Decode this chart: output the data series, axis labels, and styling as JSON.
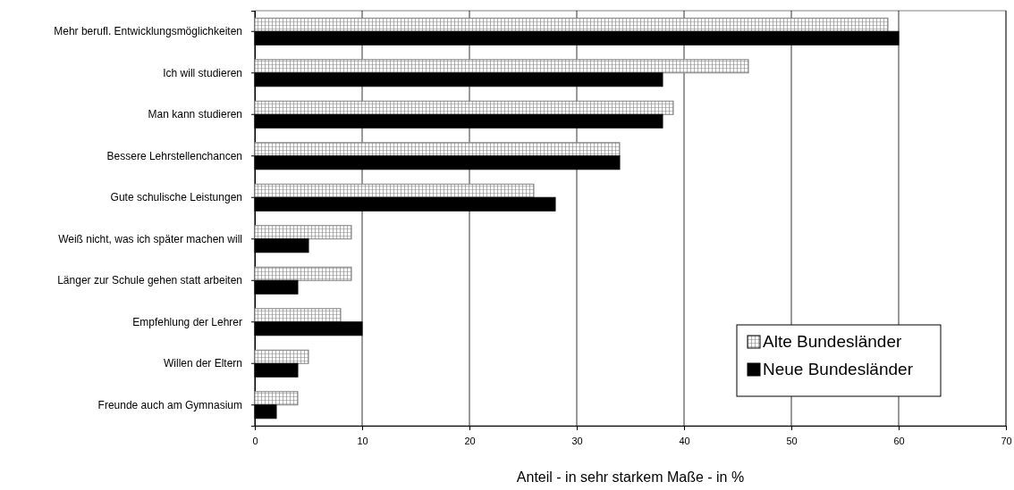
{
  "chart_data": {
    "type": "bar",
    "orientation": "horizontal",
    "xlabel": "Anteil - in sehr starkem Maße  - in %",
    "categories": [
      "Mehr berufl. Entwicklungsmöglichkeiten",
      "Ich will studieren",
      "Man kann studieren",
      "Bessere Lehrstellenchancen",
      "Gute schulische Leistungen",
      "Weiß nicht, was ich später machen will",
      "Länger zur Schule gehen statt arbeiten",
      "Empfehlung der Lehrer",
      "Willen der Eltern",
      "Freunde auch am Gymnasium"
    ],
    "series": [
      {
        "name": "Alte Bundesländer",
        "color": "#808080",
        "values": [
          59,
          46,
          39,
          34,
          26,
          9,
          9,
          8,
          5,
          4
        ]
      },
      {
        "name": "Neue Bundesländer",
        "color": "#000000",
        "values": [
          60,
          38,
          38,
          34,
          28,
          5,
          4,
          10,
          4,
          2
        ]
      }
    ],
    "xlim": [
      0,
      70
    ],
    "xticks": [
      0,
      10,
      20,
      30,
      40,
      50,
      60,
      70
    ],
    "grid": "x",
    "legend": "bottom right"
  }
}
